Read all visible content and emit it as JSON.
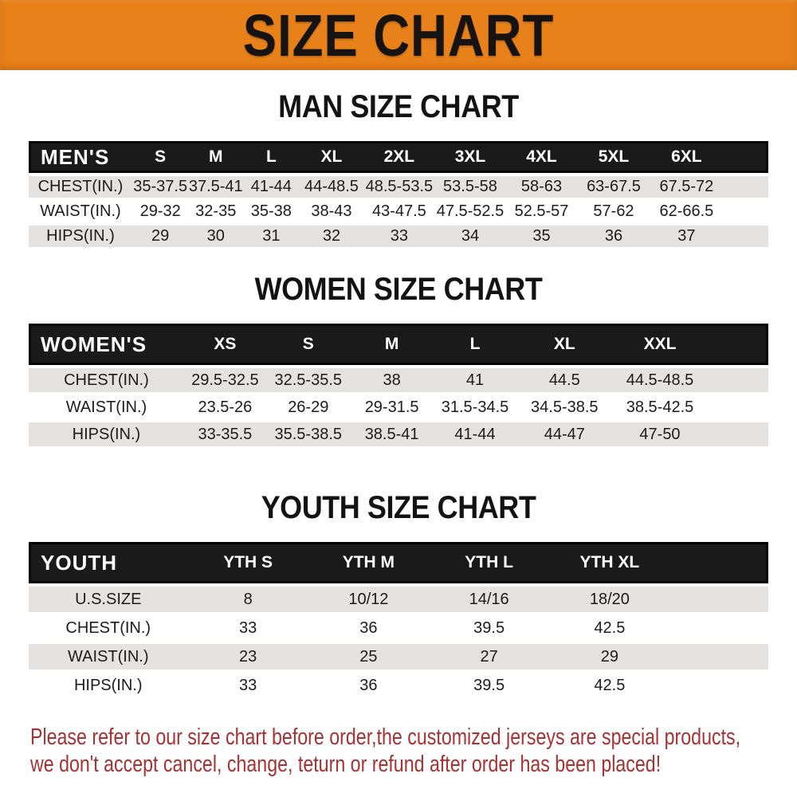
{
  "banner": {
    "title": "SIZE CHART"
  },
  "colors": {
    "banner_background": "#E8811A",
    "banner_text": "#161310",
    "table_header_bar": "#1A1A1A",
    "table_header_text": "#FFFFFF",
    "row_stripe": "#E4E3E1",
    "notice_text": "#A63232"
  },
  "chart_data": [
    {
      "type": "table",
      "title": "MAN SIZE CHART",
      "corner_label": "MEN'S",
      "columns": [
        "S",
        "M",
        "L",
        "XL",
        "2XL",
        "3XL",
        "4XL",
        "5XL",
        "6XL"
      ],
      "rows": [
        {
          "label": "CHEST(IN.)",
          "values": [
            "35-37.5",
            "37.5-41",
            "41-44",
            "44-48.5",
            "48.5-53.5",
            "53.5-58",
            "58-63",
            "63-67.5",
            "67.5-72"
          ]
        },
        {
          "label": "WAIST(IN.)",
          "values": [
            "29-32",
            "32-35",
            "35-38",
            "38-43",
            "43-47.5",
            "47.5-52.5",
            "52.5-57",
            "57-62",
            "62-66.5"
          ]
        },
        {
          "label": "HIPS(IN.)",
          "values": [
            "29",
            "30",
            "31",
            "32",
            "33",
            "34",
            "35",
            "36",
            "37"
          ]
        }
      ]
    },
    {
      "type": "table",
      "title": "WOMEN SIZE CHART",
      "corner_label": "WOMEN'S",
      "columns": [
        "XS",
        "S",
        "M",
        "L",
        "XL",
        "XXL"
      ],
      "rows": [
        {
          "label": "CHEST(IN.)",
          "values": [
            "29.5-32.5",
            "32.5-35.5",
            "38",
            "41",
            "44.5",
            "44.5-48.5"
          ]
        },
        {
          "label": "WAIST(IN.)",
          "values": [
            "23.5-26",
            "26-29",
            "29-31.5",
            "31.5-34.5",
            "34.5-38.5",
            "38.5-42.5"
          ]
        },
        {
          "label": "HIPS(IN.)",
          "values": [
            "33-35.5",
            "35.5-38.5",
            "38.5-41",
            "41-44",
            "44-47",
            "47-50"
          ]
        }
      ]
    },
    {
      "type": "table",
      "title": "YOUTH SIZE CHART",
      "corner_label": "YOUTH",
      "columns": [
        "YTH S",
        "YTH M",
        "YTH L",
        "YTH XL"
      ],
      "rows": [
        {
          "label": "U.S.SIZE",
          "values": [
            "8",
            "10/12",
            "14/16",
            "18/20"
          ]
        },
        {
          "label": "CHEST(IN.)",
          "values": [
            "33",
            "36",
            "39.5",
            "42.5"
          ]
        },
        {
          "label": "WAIST(IN.)",
          "values": [
            "23",
            "25",
            "27",
            "29"
          ]
        },
        {
          "label": "HIPS(IN.)",
          "values": [
            "33",
            "36",
            "39.5",
            "42.5"
          ]
        }
      ]
    }
  ],
  "notice": {
    "lines": [
      "Please refer to our size chart before order,the customized jerseys are special products,",
      "we don't accept cancel, change, teturn or refund after order has been placed!"
    ]
  }
}
